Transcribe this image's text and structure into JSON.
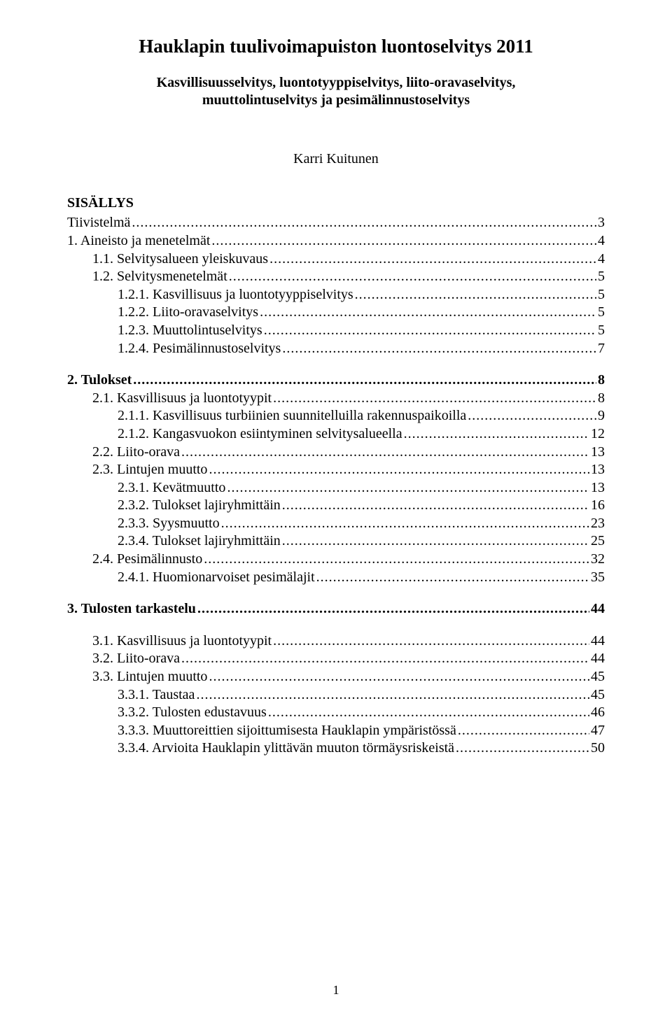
{
  "title": "Hauklapin tuulivoimapuiston luontoselvitys 2011",
  "subtitle": "Kasvillisuusselvitys, luontotyyppiselvitys, liito-oravaselvitys, muuttolintuselvitys ja pesimälinnustoselvitys",
  "author": "Karri Kuitunen",
  "sisallys_label": "SISÄLLYS",
  "page_number": "1",
  "toc": [
    {
      "label": "Tiivistelmä",
      "page": "3",
      "indent": 0,
      "bold": false,
      "gap": false
    },
    {
      "label": "1. Aineisto ja menetelmät",
      "page": "4",
      "indent": 0,
      "bold": false,
      "gap": false
    },
    {
      "label": "1.1. Selvitysalueen yleiskuvaus",
      "page": "4",
      "indent": 1,
      "bold": false,
      "gap": false
    },
    {
      "label": "1.2. Selvitysmenetelmät",
      "page": "5",
      "indent": 1,
      "bold": false,
      "gap": false
    },
    {
      "label": "1.2.1. Kasvillisuus ja luontotyyppiselvitys",
      "page": "5",
      "indent": 2,
      "bold": false,
      "gap": false
    },
    {
      "label": "1.2.2. Liito-oravaselvitys",
      "page": "5",
      "indent": 2,
      "bold": false,
      "gap": false
    },
    {
      "label": "1.2.3. Muuttolintuselvitys",
      "page": "5",
      "indent": 2,
      "bold": false,
      "gap": false
    },
    {
      "label": "1.2.4. Pesimälinnustoselvitys",
      "page": "7",
      "indent": 2,
      "bold": false,
      "gap": false
    },
    {
      "label": "2. Tulokset",
      "page": "8",
      "indent": 0,
      "bold": true,
      "gap": true
    },
    {
      "label": "2.1. Kasvillisuus ja luontotyypit",
      "page": "8",
      "indent": 1,
      "bold": false,
      "gap": false
    },
    {
      "label": "2.1.1. Kasvillisuus turbiinien suunnitelluilla rakennuspaikoilla",
      "page": "9",
      "indent": 2,
      "bold": false,
      "gap": false
    },
    {
      "label": "2.1.2. Kangasvuokon esiintyminen selvitysalueella",
      "page": "12",
      "indent": 2,
      "bold": false,
      "gap": false
    },
    {
      "label": "2.2. Liito-orava",
      "page": "13",
      "indent": 1,
      "bold": false,
      "gap": false
    },
    {
      "label": "2.3. Lintujen muutto",
      "page": "13",
      "indent": 1,
      "bold": false,
      "gap": false
    },
    {
      "label": "2.3.1. Kevätmuutto",
      "page": "13",
      "indent": 2,
      "bold": false,
      "gap": false
    },
    {
      "label": "2.3.2. Tulokset lajiryhmittäin",
      "page": "16",
      "indent": 2,
      "bold": false,
      "gap": false
    },
    {
      "label": "2.3.3. Syysmuutto",
      "page": "23",
      "indent": 2,
      "bold": false,
      "gap": false
    },
    {
      "label": "2.3.4. Tulokset lajiryhmittäin",
      "page": "25",
      "indent": 2,
      "bold": false,
      "gap": false
    },
    {
      "label": "2.4. Pesimälinnusto",
      "page": "32",
      "indent": 1,
      "bold": false,
      "gap": false
    },
    {
      "label": "2.4.1. Huomionarvoiset pesimälajit",
      "page": "35",
      "indent": 2,
      "bold": false,
      "gap": false
    },
    {
      "label": "3. Tulosten tarkastelu",
      "page": "44",
      "indent": 0,
      "bold": true,
      "gap": true
    },
    {
      "label": "3.1. Kasvillisuus ja luontotyypit",
      "page": "44",
      "indent": 1,
      "bold": false,
      "gap": true
    },
    {
      "label": "3.2. Liito-orava",
      "page": "44",
      "indent": 1,
      "bold": false,
      "gap": false
    },
    {
      "label": "3.3. Lintujen muutto",
      "page": "45",
      "indent": 1,
      "bold": false,
      "gap": false
    },
    {
      "label": "3.3.1. Taustaa",
      "page": "45",
      "indent": 2,
      "bold": false,
      "gap": false
    },
    {
      "label": "3.3.2. Tulosten edustavuus",
      "page": "46",
      "indent": 2,
      "bold": false,
      "gap": false
    },
    {
      "label": "3.3.3. Muuttoreittien sijoittumisesta Hauklapin ympäristössä",
      "page": "47",
      "indent": 2,
      "bold": false,
      "gap": false
    },
    {
      "label": "3.3.4. Arvioita Hauklapin ylittävän muuton törmäysriskeistä",
      "page": "50",
      "indent": 2,
      "bold": false,
      "gap": false
    }
  ]
}
